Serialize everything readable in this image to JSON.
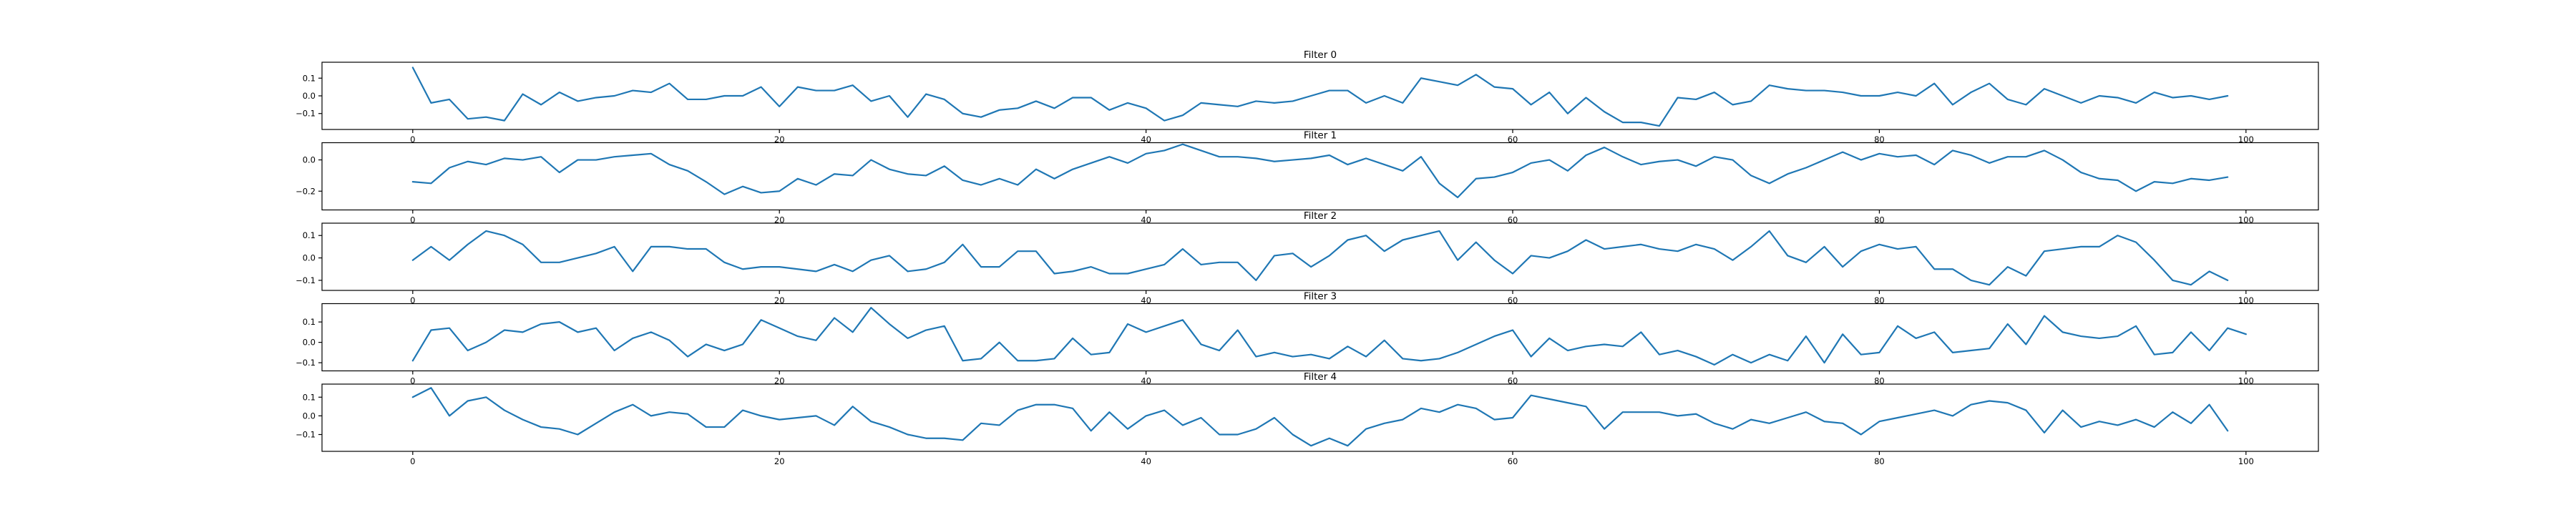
{
  "chart_data": [
    {
      "type": "line",
      "title": "Filter 0",
      "xlabel": "",
      "ylabel": "",
      "xlim": [
        -4.95,
        103.95
      ],
      "ylim": [
        -0.19,
        0.19
      ],
      "xticks": [
        0,
        20,
        40,
        60,
        80,
        100
      ],
      "xtick_labels": [
        "0",
        "20",
        "40",
        "60",
        "80",
        "100"
      ],
      "yticks": [
        0.1,
        0.0,
        -0.1
      ],
      "ytick_labels": [
        "0.1",
        "0.0",
        "−0.1"
      ],
      "grid": false,
      "series": [
        {
          "color": "#1f77b4",
          "x_start": 0,
          "x_step": 1,
          "values": [
            0.16,
            -0.04,
            -0.02,
            -0.13,
            -0.12,
            -0.14,
            0.01,
            -0.05,
            0.02,
            -0.03,
            -0.01,
            0.0,
            0.03,
            0.02,
            0.07,
            -0.02,
            -0.02,
            0.0,
            0.0,
            0.05,
            -0.06,
            0.05,
            0.03,
            0.03,
            0.06,
            -0.03,
            0.0,
            -0.12,
            0.01,
            -0.02,
            -0.1,
            -0.12,
            -0.08,
            -0.07,
            -0.03,
            -0.07,
            -0.01,
            -0.01,
            -0.08,
            -0.04,
            -0.07,
            -0.14,
            -0.11,
            -0.04,
            -0.05,
            -0.06,
            -0.03,
            -0.04,
            -0.03,
            0.0,
            0.03,
            0.03,
            -0.04,
            0.0,
            -0.04,
            0.1,
            0.08,
            0.06,
            0.12,
            0.05,
            0.04,
            -0.05,
            0.02,
            -0.1,
            -0.01,
            -0.09,
            -0.15,
            -0.15,
            -0.17,
            -0.01,
            -0.02,
            0.02,
            -0.05,
            -0.03,
            0.06,
            0.04,
            0.03,
            0.03,
            0.02,
            0.0,
            0.0,
            0.02,
            0.0,
            0.07,
            -0.05,
            0.02,
            0.07,
            -0.02,
            -0.05,
            0.04,
            0.0,
            -0.04,
            0.0,
            -0.01,
            -0.04,
            0.02,
            -0.01,
            0.0,
            -0.02,
            0.0
          ]
        }
      ]
    },
    {
      "type": "line",
      "title": "Filter 1",
      "xlabel": "",
      "ylabel": "",
      "xlim": [
        -4.95,
        103.95
      ],
      "ylim": [
        -0.32,
        0.11
      ],
      "xticks": [
        0,
        20,
        40,
        60,
        80,
        100
      ],
      "xtick_labels": [
        "0",
        "20",
        "40",
        "60",
        "80",
        "100"
      ],
      "yticks": [
        0.0,
        -0.2
      ],
      "ytick_labels": [
        "0.0",
        "−0.2"
      ],
      "grid": false,
      "series": [
        {
          "color": "#1f77b4",
          "x_start": 0,
          "x_step": 1,
          "values": [
            -0.14,
            -0.15,
            -0.05,
            -0.01,
            -0.03,
            0.01,
            0.0,
            0.02,
            -0.08,
            0.0,
            0.0,
            0.02,
            0.03,
            0.04,
            -0.03,
            -0.07,
            -0.14,
            -0.22,
            -0.17,
            -0.21,
            -0.2,
            -0.12,
            -0.16,
            -0.09,
            -0.1,
            0.0,
            -0.06,
            -0.09,
            -0.1,
            -0.04,
            -0.13,
            -0.16,
            -0.12,
            -0.16,
            -0.06,
            -0.12,
            -0.06,
            -0.02,
            0.02,
            -0.02,
            0.04,
            0.06,
            0.1,
            0.06,
            0.02,
            0.02,
            0.01,
            -0.01,
            0.0,
            0.01,
            0.03,
            -0.03,
            0.01,
            -0.03,
            -0.07,
            0.02,
            -0.15,
            -0.24,
            -0.12,
            -0.11,
            -0.08,
            -0.02,
            0.0,
            -0.07,
            0.03,
            0.08,
            0.02,
            -0.03,
            -0.01,
            0.0,
            -0.04,
            0.02,
            0.0,
            -0.1,
            -0.15,
            -0.09,
            -0.05,
            0.0,
            0.05,
            0.0,
            0.04,
            0.02,
            0.03,
            -0.03,
            0.06,
            0.03,
            -0.02,
            0.02,
            0.02,
            0.06,
            0.0,
            -0.08,
            -0.12,
            -0.13,
            -0.2,
            -0.14,
            -0.15,
            -0.12,
            -0.13,
            -0.11
          ]
        }
      ]
    },
    {
      "type": "line",
      "title": "Filter 2",
      "xlabel": "",
      "ylabel": "",
      "xlim": [
        -4.95,
        103.95
      ],
      "ylim": [
        -0.145,
        0.155
      ],
      "xticks": [
        0,
        20,
        40,
        60,
        80,
        100
      ],
      "xtick_labels": [
        "0",
        "20",
        "40",
        "60",
        "80",
        "100"
      ],
      "yticks": [
        0.1,
        0.0,
        -0.1
      ],
      "ytick_labels": [
        "0.1",
        "0.0",
        "−0.1"
      ],
      "grid": false,
      "series": [
        {
          "color": "#1f77b4",
          "x_start": 0,
          "x_step": 1,
          "values": [
            -0.01,
            0.05,
            -0.01,
            0.06,
            0.12,
            0.1,
            0.06,
            -0.02,
            -0.02,
            0.0,
            0.02,
            0.05,
            -0.06,
            0.05,
            0.05,
            0.04,
            0.04,
            -0.02,
            -0.05,
            -0.04,
            -0.04,
            -0.05,
            -0.06,
            -0.03,
            -0.06,
            -0.01,
            0.01,
            -0.06,
            -0.05,
            -0.02,
            0.06,
            -0.04,
            -0.04,
            0.03,
            0.03,
            -0.07,
            -0.06,
            -0.04,
            -0.07,
            -0.07,
            -0.05,
            -0.03,
            0.04,
            -0.03,
            -0.02,
            -0.02,
            -0.1,
            0.01,
            0.02,
            -0.04,
            0.01,
            0.08,
            0.1,
            0.03,
            0.08,
            0.1,
            0.12,
            -0.01,
            0.07,
            -0.01,
            -0.07,
            0.01,
            0.0,
            0.03,
            0.08,
            0.04,
            0.05,
            0.06,
            0.04,
            0.03,
            0.06,
            0.04,
            -0.01,
            0.05,
            0.12,
            0.01,
            -0.02,
            0.05,
            -0.04,
            0.03,
            0.06,
            0.04,
            0.05,
            -0.05,
            -0.05,
            -0.1,
            -0.12,
            -0.04,
            -0.08,
            0.03,
            0.04,
            0.05,
            0.05,
            0.1,
            0.07,
            -0.01,
            -0.1,
            -0.12,
            -0.06,
            -0.1
          ]
        }
      ]
    },
    {
      "type": "line",
      "title": "Filter 3",
      "xlabel": "",
      "ylabel": "",
      "xlim": [
        -4.95,
        103.95
      ],
      "ylim": [
        -0.14,
        0.19
      ],
      "xticks": [
        0,
        20,
        40,
        60,
        80,
        100
      ],
      "xtick_labels": [
        "0",
        "20",
        "40",
        "60",
        "80",
        "100"
      ],
      "yticks": [
        0.1,
        0.0,
        -0.1
      ],
      "ytick_labels": [
        "0.1",
        "0.0",
        "−0.1"
      ],
      "grid": false,
      "series": [
        {
          "color": "#1f77b4",
          "x_start": 0,
          "x_step": 1,
          "values": [
            -0.09,
            0.06,
            0.07,
            -0.04,
            0.0,
            0.06,
            0.05,
            0.09,
            0.1,
            0.05,
            0.07,
            -0.04,
            0.02,
            0.05,
            0.01,
            -0.07,
            -0.01,
            -0.04,
            -0.01,
            0.11,
            0.07,
            0.03,
            0.01,
            0.12,
            0.05,
            0.17,
            0.09,
            0.02,
            0.06,
            0.08,
            -0.09,
            -0.08,
            0.0,
            -0.09,
            -0.09,
            -0.08,
            0.02,
            -0.06,
            -0.05,
            0.09,
            0.05,
            0.08,
            0.11,
            -0.01,
            -0.04,
            0.06,
            -0.07,
            -0.05,
            -0.07,
            -0.06,
            -0.08,
            -0.02,
            -0.07,
            0.01,
            -0.08,
            -0.09,
            -0.08,
            -0.05,
            -0.01,
            0.03,
            0.06,
            -0.07,
            0.02,
            -0.04,
            -0.02,
            -0.01,
            -0.02,
            0.05,
            -0.06,
            -0.04,
            -0.07,
            -0.11,
            -0.06,
            -0.1,
            -0.06,
            -0.09,
            0.03,
            -0.1,
            0.04,
            -0.06,
            -0.05,
            0.08,
            0.02,
            0.05,
            -0.05,
            -0.04,
            -0.03,
            0.09,
            -0.01,
            0.13,
            0.05,
            0.03,
            0.02,
            0.03,
            0.08,
            -0.06,
            -0.05,
            0.05,
            -0.04,
            0.07,
            0.04
          ]
        }
      ]
    },
    {
      "type": "line",
      "title": "Filter 4",
      "xlabel": "",
      "ylabel": "",
      "xlim": [
        -4.95,
        103.95
      ],
      "ylim": [
        -0.19,
        0.17
      ],
      "xticks": [
        0,
        20,
        40,
        60,
        80,
        100
      ],
      "xtick_labels": [
        "0",
        "20",
        "40",
        "60",
        "80",
        "100"
      ],
      "yticks": [
        0.1,
        0.0,
        -0.1
      ],
      "ytick_labels": [
        "0.1",
        "0.0",
        "−0.1"
      ],
      "grid": false,
      "series": [
        {
          "color": "#1f77b4",
          "x_start": 0,
          "x_step": 1,
          "values": [
            0.1,
            0.15,
            0.0,
            0.08,
            0.1,
            0.03,
            -0.02,
            -0.06,
            -0.07,
            -0.1,
            -0.04,
            0.02,
            0.06,
            0.0,
            0.02,
            0.01,
            -0.06,
            -0.06,
            0.03,
            0.0,
            -0.02,
            -0.01,
            0.0,
            -0.05,
            0.05,
            -0.03,
            -0.06,
            -0.1,
            -0.12,
            -0.12,
            -0.13,
            -0.04,
            -0.05,
            0.03,
            0.06,
            0.06,
            0.04,
            -0.08,
            0.02,
            -0.07,
            0.0,
            0.03,
            -0.05,
            -0.01,
            -0.1,
            -0.1,
            -0.07,
            -0.01,
            -0.1,
            -0.16,
            -0.12,
            -0.16,
            -0.07,
            -0.04,
            -0.02,
            0.04,
            0.02,
            0.06,
            0.04,
            -0.02,
            -0.01,
            0.11,
            0.09,
            0.07,
            0.05,
            -0.07,
            0.02,
            0.02,
            0.02,
            0.0,
            0.01,
            -0.04,
            -0.07,
            -0.02,
            -0.04,
            -0.01,
            0.02,
            -0.03,
            -0.04,
            -0.1,
            -0.03,
            -0.01,
            0.01,
            0.03,
            0.0,
            0.06,
            0.08,
            0.07,
            0.03,
            -0.09,
            0.03,
            -0.06,
            -0.03,
            -0.05,
            -0.02,
            -0.06,
            0.02,
            -0.04,
            0.06,
            -0.08
          ]
        }
      ]
    }
  ]
}
